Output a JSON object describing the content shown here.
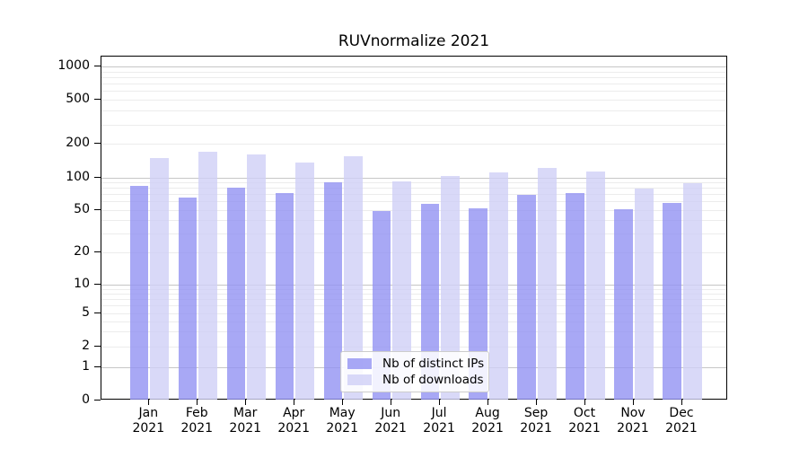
{
  "chart_data": {
    "type": "bar",
    "title": "RUVnormalize 2021",
    "categories": [
      "Jan 2021",
      "Feb 2021",
      "Mar 2021",
      "Apr 2021",
      "May 2021",
      "Jun 2021",
      "Jul 2021",
      "Aug 2021",
      "Sep 2021",
      "Oct 2021",
      "Nov 2021",
      "Dec 2021"
    ],
    "series": [
      {
        "name": "Nb of distinct IPs",
        "color": "#9292f2",
        "opacity": 0.8,
        "values": [
          83,
          65,
          80,
          71,
          90,
          49,
          57,
          52,
          69,
          72,
          51,
          58
        ]
      },
      {
        "name": "Nb of downloads",
        "color": "#d0d0f6",
        "opacity": 0.8,
        "values": [
          150,
          170,
          160,
          136,
          156,
          92,
          102,
          111,
          122,
          112,
          79,
          88
        ]
      }
    ],
    "xlabel": "",
    "ylabel": "",
    "yscale": "symlog",
    "yticks": [
      0,
      1,
      2,
      5,
      10,
      20,
      50,
      100,
      200,
      500,
      1000
    ],
    "ylim": [
      0,
      1200
    ],
    "grid": "on",
    "legend_position": "lower-center"
  }
}
